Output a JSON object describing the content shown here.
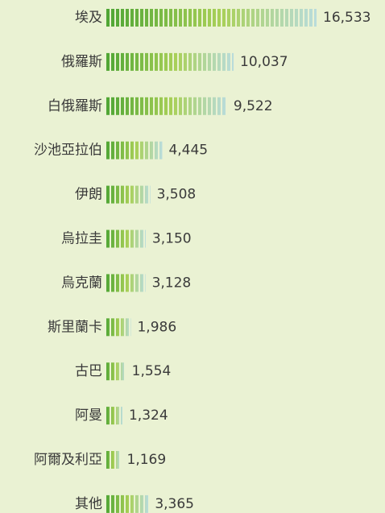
{
  "chart_data": {
    "type": "bar",
    "orientation": "horizontal",
    "categories": [
      "埃及",
      "俄羅斯",
      "白俄羅斯",
      "沙池亞拉伯",
      "伊朗",
      "烏拉圭",
      "烏克蘭",
      "斯里蘭卡",
      "古巴",
      "阿曼",
      "阿爾及利亞",
      "其他"
    ],
    "values": [
      16533,
      10037,
      9522,
      4445,
      3508,
      3150,
      3128,
      1986,
      1554,
      1324,
      1169,
      3365
    ],
    "value_labels": [
      "16,533",
      "10,037",
      "9,522",
      "4,445",
      "3,508",
      "3,150",
      "3,128",
      "1,986",
      "1,554",
      "1,324",
      "1,169",
      "3,365"
    ],
    "color": "#5aab3a"
  }
}
